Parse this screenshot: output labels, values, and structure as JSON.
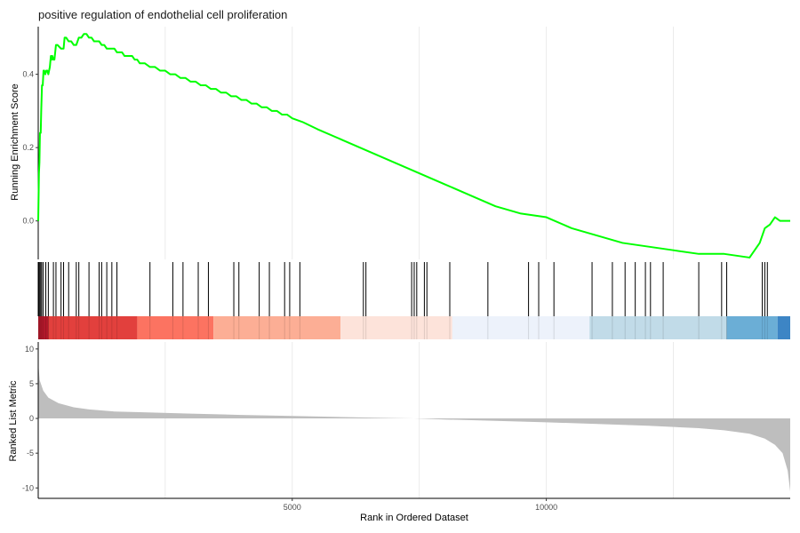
{
  "chart_data": {
    "type": "line",
    "title": "positive regulation of endothelial cell proliferation",
    "xlabel": "Rank in Ordered Dataset",
    "x_ticks": [
      5000,
      10000
    ],
    "x_tick_labels": [
      "5000",
      "10000"
    ],
    "xlim": [
      1,
      14800
    ],
    "grid": "vertical major gridlines",
    "panels": [
      {
        "name": "running-enrichment-score",
        "ylabel": "Running Enrichment Score",
        "ylim": [
          -0.105,
          0.53
        ],
        "y_ticks": [
          0.0,
          0.2,
          0.4
        ],
        "y_tick_labels": [
          "0.0",
          "0.2",
          "0.4"
        ],
        "line_color": "#00ff00",
        "x": [
          1,
          15,
          25,
          35,
          50,
          60,
          75,
          90,
          105,
          120,
          140,
          160,
          180,
          200,
          215,
          230,
          250,
          260,
          270,
          280,
          300,
          320,
          350,
          380,
          450,
          500,
          520,
          550,
          600,
          650,
          700,
          750,
          800,
          850,
          900,
          950,
          1000,
          1050,
          1100,
          1150,
          1200,
          1250,
          1300,
          1350,
          1400,
          1450,
          1500,
          1550,
          1600,
          1650,
          1700,
          1750,
          1800,
          1850,
          1900,
          1950,
          2000,
          2100,
          2200,
          2300,
          2400,
          2500,
          2600,
          2700,
          2800,
          2900,
          3000,
          3100,
          3200,
          3300,
          3400,
          3500,
          3600,
          3700,
          3800,
          3900,
          4000,
          4100,
          4200,
          4300,
          4400,
          4500,
          4600,
          4700,
          4800,
          4900,
          5000,
          5200,
          5500,
          6000,
          6500,
          7000,
          7500,
          8000,
          8500,
          9000,
          9500,
          10000,
          10500,
          11000,
          11500,
          12000,
          12500,
          13000,
          13500,
          14000,
          14200,
          14300,
          14400,
          14500,
          14600,
          14700,
          14800
        ],
        "y": [
          0.0,
          0.13,
          0.16,
          0.24,
          0.24,
          0.3,
          0.37,
          0.37,
          0.41,
          0.41,
          0.4,
          0.41,
          0.41,
          0.4,
          0.41,
          0.42,
          0.45,
          0.45,
          0.44,
          0.45,
          0.44,
          0.44,
          0.48,
          0.48,
          0.47,
          0.47,
          0.5,
          0.5,
          0.49,
          0.49,
          0.48,
          0.48,
          0.5,
          0.5,
          0.51,
          0.51,
          0.5,
          0.5,
          0.49,
          0.49,
          0.49,
          0.48,
          0.48,
          0.47,
          0.47,
          0.47,
          0.47,
          0.46,
          0.46,
          0.46,
          0.45,
          0.45,
          0.45,
          0.45,
          0.44,
          0.44,
          0.43,
          0.43,
          0.42,
          0.42,
          0.41,
          0.41,
          0.4,
          0.4,
          0.39,
          0.39,
          0.38,
          0.38,
          0.37,
          0.37,
          0.36,
          0.36,
          0.35,
          0.35,
          0.34,
          0.34,
          0.33,
          0.33,
          0.32,
          0.32,
          0.31,
          0.31,
          0.3,
          0.3,
          0.29,
          0.29,
          0.28,
          0.27,
          0.25,
          0.22,
          0.19,
          0.16,
          0.13,
          0.1,
          0.07,
          0.04,
          0.02,
          0.01,
          -0.02,
          -0.04,
          -0.06,
          -0.07,
          -0.08,
          -0.09,
          -0.09,
          -0.1,
          -0.06,
          -0.02,
          -0.01,
          0.01,
          0.0,
          0.0,
          0.0
        ]
      },
      {
        "name": "gene-hits",
        "hit_positions": [
          10,
          30,
          50,
          70,
          100,
          150,
          200,
          300,
          350,
          450,
          500,
          600,
          750,
          800,
          1000,
          1200,
          1250,
          1350,
          1450,
          1550,
          2200,
          2650,
          2850,
          3150,
          3350,
          3850,
          3950,
          4350,
          4550,
          4850,
          4950,
          5150,
          6400,
          6450,
          7350,
          7400,
          7450,
          7600,
          7650,
          8100,
          8850,
          9650,
          9850,
          10150,
          10900,
          11300,
          11550,
          11750,
          11950,
          12050,
          12300,
          13000,
          13450,
          13550,
          14250,
          14300,
          14350
        ]
      },
      {
        "name": "rank-color-bar",
        "band_edges": [
          1,
          200,
          1950,
          3450,
          5950,
          8150,
          10850,
          13550,
          14550,
          14800
        ],
        "band_colors": [
          "#b2182b",
          "#e2403d",
          "#fc7361",
          "#fcae95",
          "#fde3da",
          "#edf2fb",
          "#c1dbe8",
          "#6baed6",
          "#3d85c5"
        ]
      },
      {
        "name": "ranked-list-metric",
        "ylabel": "Ranked List Metric",
        "ylim": [
          -11.5,
          11
        ],
        "y_ticks": [
          10,
          5,
          0,
          -5,
          -10
        ],
        "y_tick_labels": [
          "10",
          "5",
          "0",
          "-5",
          "-10"
        ],
        "fill_color": "#bebebe",
        "x": [
          1,
          30,
          100,
          200,
          400,
          700,
          1000,
          1500,
          2000,
          3000,
          4000,
          5000,
          6000,
          7000,
          7400,
          8000,
          9000,
          10000,
          11000,
          12000,
          13000,
          13500,
          14000,
          14300,
          14500,
          14650,
          14750,
          14800
        ],
        "y": [
          8,
          5.5,
          4,
          3,
          2.2,
          1.6,
          1.3,
          1.0,
          0.9,
          0.7,
          0.5,
          0.35,
          0.2,
          0.05,
          0.0,
          -0.15,
          -0.35,
          -0.55,
          -0.8,
          -1.05,
          -1.4,
          -1.7,
          -2.2,
          -2.9,
          -3.8,
          -5.0,
          -7.5,
          -10.5
        ]
      }
    ]
  }
}
